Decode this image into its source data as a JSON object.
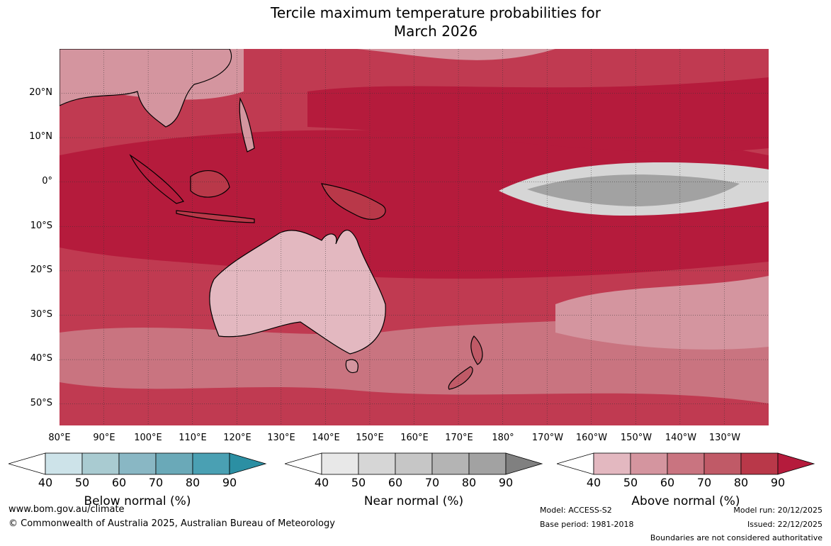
{
  "title": {
    "line1": "Tercile maximum temperature probabilities for",
    "line2": "March 2026"
  },
  "map": {
    "latitude_labels": [
      "20°N",
      "10°N",
      "0°",
      "10°S",
      "20°S",
      "30°S",
      "40°S",
      "50°S"
    ],
    "longitude_labels": [
      "80°E",
      "90°E",
      "100°E",
      "110°E",
      "120°E",
      "130°E",
      "140°E",
      "150°E",
      "160°E",
      "170°E",
      "180°",
      "170°W",
      "160°W",
      "150°W",
      "140°W",
      "130°W"
    ],
    "gridlines": true,
    "dominant_category": "Above normal",
    "near_normal_region": "equatorial central-eastern Pacific"
  },
  "legends": [
    {
      "title": "Below normal (%)",
      "ticks": [
        "40",
        "50",
        "60",
        "70",
        "80",
        "90"
      ],
      "colors": [
        "#ffffff",
        "#cde3e9",
        "#a9cbd1",
        "#89b7c4",
        "#6aa9b8",
        "#4aa0b3",
        "#2b8fa3"
      ]
    },
    {
      "title": "Near normal (%)",
      "ticks": [
        "40",
        "50",
        "60",
        "70",
        "80",
        "90"
      ],
      "colors": [
        "#ffffff",
        "#e8e8e8",
        "#d6d6d6",
        "#c6c6c6",
        "#b4b4b4",
        "#a2a2a2",
        "#808080"
      ]
    },
    {
      "title": "Above normal (%)",
      "ticks": [
        "40",
        "50",
        "60",
        "70",
        "80",
        "90"
      ],
      "colors": [
        "#ffffff",
        "#e3b8c0",
        "#d4959f",
        "#c97480",
        "#c05a67",
        "#b93849",
        "#b51b3c"
      ]
    }
  ],
  "footer": {
    "url": "www.bom.gov.au/climate",
    "copyright": "© Commonwealth of Australia 2025, Australian Bureau of Meteorology",
    "model": "Model: ACCESS-S2",
    "base_period": "Base period: 1981-2018",
    "model_run": "Model run: 20/12/2025",
    "issued": "Issued: 22/12/2025",
    "disclaimer": "Boundaries are not considered authoritative"
  }
}
